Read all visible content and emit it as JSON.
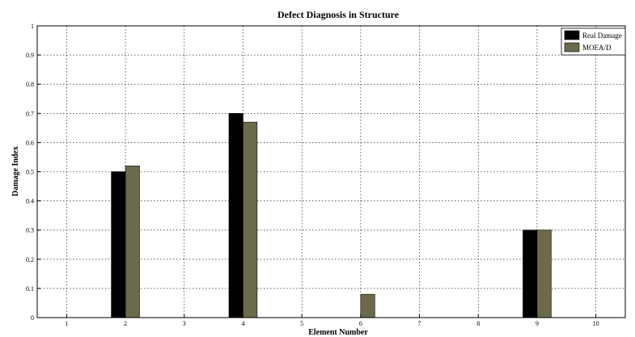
{
  "chart_data": {
    "type": "bar",
    "title": "Defect Diagnosis in Structure",
    "xlabel": "Element Number",
    "ylabel": "Damage Index",
    "categories": [
      "1",
      "2",
      "3",
      "4",
      "5",
      "6",
      "7",
      "8",
      "9",
      "10"
    ],
    "series": [
      {
        "name": "Real Damage",
        "color": "#000000",
        "values": [
          0,
          0.5,
          0,
          0.7,
          0,
          0,
          0,
          0,
          0.3,
          0
        ]
      },
      {
        "name": "MOEA/D",
        "color": "#6b6b4b",
        "values": [
          0,
          0.52,
          0,
          0.67,
          0,
          0.08,
          0,
          0,
          0.3,
          0
        ]
      }
    ],
    "ylim": [
      0,
      1
    ],
    "yticks": [
      "0",
      "0.1",
      "0.2",
      "0.3",
      "0.4",
      "0.5",
      "0.6",
      "0.7",
      "0.8",
      "0.9",
      "1"
    ],
    "xlim": [
      0.5,
      10.5
    ],
    "grid": true,
    "legend_position": "top-right"
  }
}
